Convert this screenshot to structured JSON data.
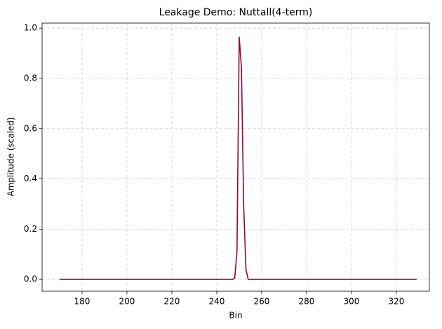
{
  "chart_data": {
    "type": "line",
    "title": "Leakage Demo: Nuttall(4-term)",
    "x_label": "Bin",
    "y_label": "Amplitude (scaled)",
    "x": [
      170,
      171,
      172,
      173,
      174,
      175,
      176,
      177,
      178,
      179,
      180,
      181,
      182,
      183,
      184,
      185,
      186,
      187,
      188,
      189,
      190,
      191,
      192,
      193,
      194,
      195,
      196,
      197,
      198,
      199,
      200,
      201,
      202,
      203,
      204,
      205,
      206,
      207,
      208,
      209,
      210,
      211,
      212,
      213,
      214,
      215,
      216,
      217,
      218,
      219,
      220,
      221,
      222,
      223,
      224,
      225,
      226,
      227,
      228,
      229,
      230,
      231,
      232,
      233,
      234,
      235,
      236,
      237,
      238,
      239,
      240,
      241,
      242,
      243,
      244,
      245,
      246,
      247,
      248,
      249,
      250,
      251,
      252,
      253,
      254,
      255,
      256,
      257,
      258,
      259,
      260,
      261,
      262,
      263,
      264,
      265,
      266,
      267,
      268,
      269,
      270,
      271,
      272,
      273,
      274,
      275,
      276,
      277,
      278,
      279,
      280,
      281,
      282,
      283,
      284,
      285,
      286,
      287,
      288,
      289,
      290,
      291,
      292,
      293,
      294,
      295,
      296,
      297,
      298,
      299,
      300,
      301,
      302,
      303,
      304,
      305,
      306,
      307,
      308,
      309,
      310,
      311,
      312,
      313,
      314,
      315,
      316,
      317,
      318,
      319,
      320,
      321,
      322,
      323,
      324,
      325,
      326,
      327,
      328,
      329
    ],
    "series": [
      {
        "color": "#8c0a34",
        "values": [
          0,
          0,
          0,
          0,
          0,
          0,
          0,
          0,
          0,
          0,
          0,
          0,
          0,
          0,
          0,
          0,
          0,
          0,
          0,
          0,
          0,
          0,
          0,
          0,
          0,
          0,
          0,
          0,
          0,
          0,
          0,
          0,
          0,
          0,
          0,
          0,
          0,
          0,
          0,
          0,
          0,
          0,
          0,
          0,
          0,
          0,
          0,
          0,
          0,
          0,
          0,
          0,
          0,
          0,
          0,
          0,
          0,
          0,
          0,
          0,
          0,
          0,
          0,
          0,
          0,
          0,
          0,
          0,
          0,
          0,
          0,
          0,
          0,
          0,
          0,
          0,
          0,
          0,
          0.005,
          0.11,
          0.965,
          0.84,
          0.29,
          0.04,
          0,
          0,
          0,
          0,
          0,
          0,
          0,
          0,
          0,
          0,
          0,
          0,
          0,
          0,
          0,
          0,
          0,
          0,
          0,
          0,
          0,
          0,
          0,
          0,
          0,
          0,
          0,
          0,
          0,
          0,
          0,
          0,
          0,
          0,
          0,
          0,
          0,
          0,
          0,
          0,
          0,
          0,
          0,
          0,
          0,
          0,
          0,
          0,
          0,
          0,
          0,
          0,
          0,
          0,
          0,
          0,
          0,
          0,
          0,
          0,
          0,
          0,
          0,
          0,
          0,
          0,
          0,
          0,
          0,
          0,
          0,
          0,
          0,
          0,
          0,
          0
        ]
      }
    ],
    "xlim": [
      162.2,
      334.7
    ],
    "ylim": [
      -0.047,
      1.02
    ],
    "xticks": [
      180,
      200,
      220,
      240,
      260,
      280,
      300,
      320
    ],
    "yticks": [
      {
        "value": 0,
        "label": "0.0"
      },
      {
        "value": 0.2,
        "label": "0.2"
      },
      {
        "value": 0.4,
        "label": "0.4"
      },
      {
        "value": 0.6,
        "label": "0.6"
      },
      {
        "value": 0.8,
        "label": "0.8"
      },
      {
        "value": 1,
        "label": "1.0"
      }
    ],
    "grid": true
  }
}
